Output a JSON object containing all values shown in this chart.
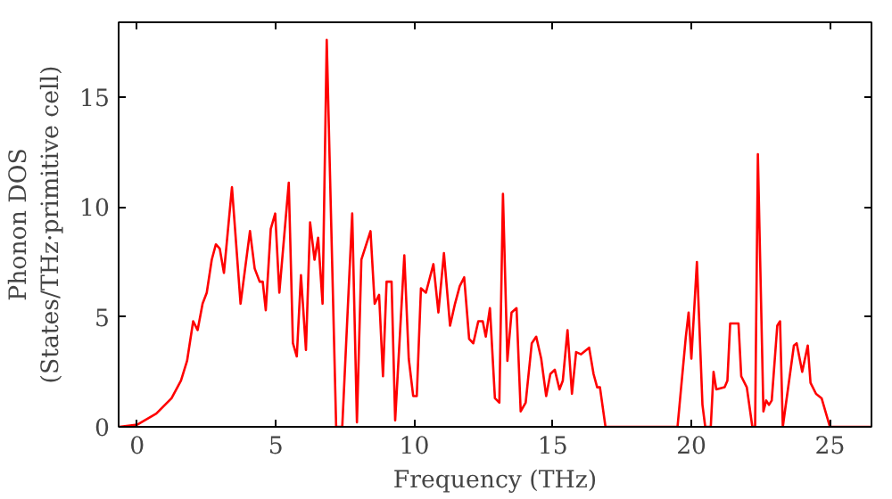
{
  "chart_data": {
    "type": "line",
    "xlabel": "Frequency (THz)",
    "ylabel": "Phonon DOS\n(States/THz·primitive cell)",
    "xlim": [
      -0.67,
      26.5
    ],
    "ylim": [
      0,
      18.4
    ],
    "xticks": [
      0,
      5,
      10,
      15,
      20,
      25
    ],
    "yticks": [
      0,
      5,
      10,
      15
    ],
    "marker": "none",
    "line_style": "solid",
    "series": [
      {
        "color": "#ff0000",
        "x": [
          -0.64,
          0,
          0.69,
          1.24,
          1.58,
          1.8,
          2.02,
          2.18,
          2.36,
          2.51,
          2.69,
          2.84,
          2.98,
          3.13,
          3.42,
          3.73,
          4.07,
          4.24,
          4.42,
          4.53,
          4.64,
          4.82,
          4.98,
          5.13,
          5.47,
          5.62,
          5.76,
          5.91,
          6.09,
          6.24,
          6.4,
          6.53,
          6.69,
          6.84,
          7.18,
          7.4,
          7.76,
          7.93,
          8.09,
          8.42,
          8.57,
          8.73,
          8.87,
          9.0,
          9.18,
          9.31,
          9.64,
          9.8,
          9.96,
          10.09,
          10.24,
          10.42,
          10.69,
          10.87,
          11.07,
          11.29,
          11.47,
          11.64,
          11.8,
          11.98,
          12.13,
          12.31,
          12.47,
          12.58,
          12.73,
          12.91,
          13.07,
          13.2,
          13.36,
          13.51,
          13.69,
          13.84,
          14.02,
          14.24,
          14.4,
          14.58,
          14.76,
          14.91,
          15.07,
          15.24,
          15.36,
          15.53,
          15.69,
          15.84,
          16.02,
          16.31,
          16.47,
          16.6,
          16.7,
          16.9,
          19.5,
          19.8,
          19.9,
          20.0,
          20.2,
          20.4,
          20.5,
          20.7,
          20.8,
          20.9,
          21.2,
          21.3,
          21.4,
          21.7,
          21.8,
          22.0,
          22.2,
          22.3,
          22.4,
          22.6,
          22.7,
          22.8,
          22.9,
          23.1,
          23.2,
          23.3,
          23.7,
          23.8,
          24.0,
          24.2,
          24.3,
          24.5,
          24.7,
          25.0,
          26.5
        ],
        "values": [
          0,
          0.1,
          0.6,
          1.3,
          2.1,
          3.0,
          4.8,
          4.4,
          5.6,
          6.1,
          7.6,
          8.3,
          8.1,
          7.0,
          10.9,
          5.6,
          8.9,
          7.2,
          6.6,
          6.6,
          5.3,
          9.0,
          9.7,
          6.1,
          11.1,
          3.8,
          3.2,
          6.9,
          3.5,
          9.3,
          7.6,
          8.6,
          5.6,
          17.6,
          0,
          0,
          9.7,
          0.2,
          7.6,
          8.9,
          5.6,
          6.0,
          2.3,
          6.6,
          6.6,
          0.3,
          7.8,
          3.1,
          1.4,
          1.4,
          6.3,
          6.1,
          7.4,
          5.2,
          7.9,
          4.6,
          5.6,
          6.4,
          6.8,
          4.0,
          3.8,
          4.8,
          4.8,
          4.1,
          5.4,
          1.3,
          1.1,
          10.6,
          3.0,
          5.2,
          5.4,
          0.7,
          1.1,
          3.8,
          4.1,
          3.1,
          1.4,
          2.4,
          2.6,
          1.7,
          2.1,
          4.4,
          1.5,
          3.4,
          3.3,
          3.6,
          2.4,
          1.8,
          1.8,
          0,
          0,
          4.1,
          5.2,
          3.1,
          7.5,
          1.0,
          0,
          0,
          2.5,
          1.7,
          1.8,
          2.1,
          4.7,
          4.7,
          2.3,
          1.8,
          0,
          0,
          12.4,
          0.7,
          1.2,
          1.0,
          1.2,
          4.6,
          4.8,
          0,
          3.7,
          3.8,
          2.5,
          3.7,
          2.0,
          1.5,
          1.3,
          0,
          0
        ]
      }
    ]
  }
}
